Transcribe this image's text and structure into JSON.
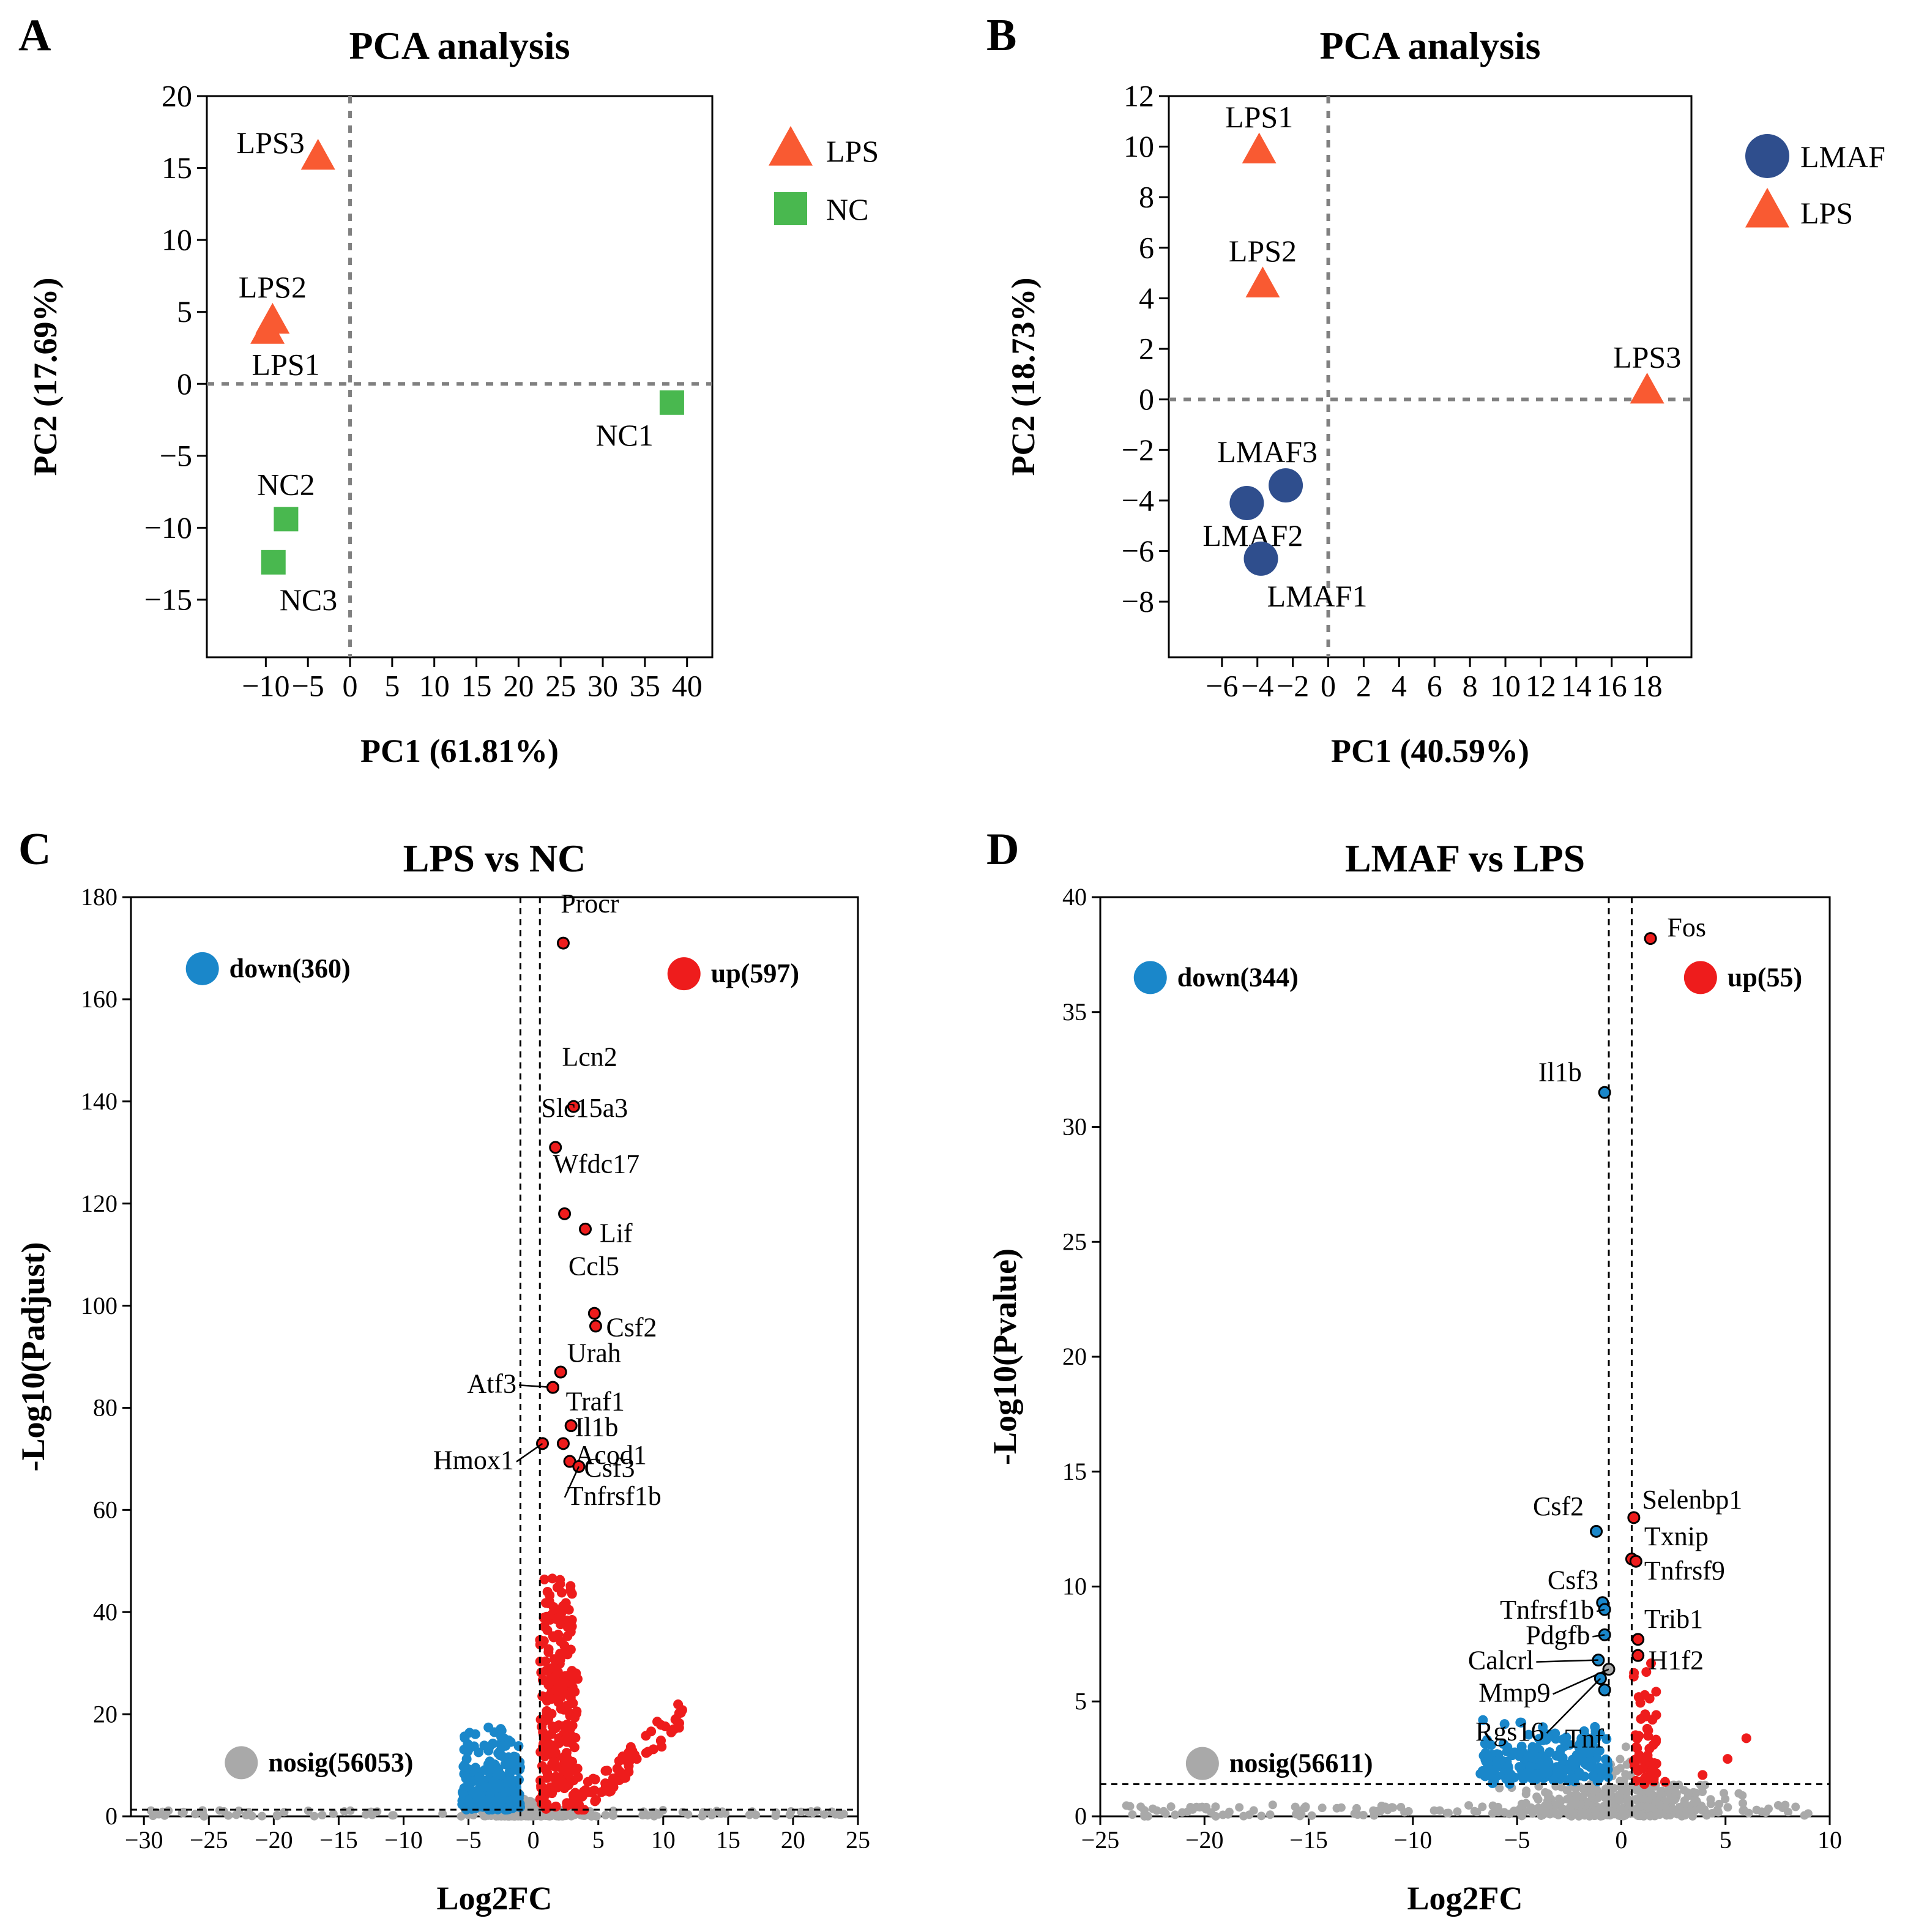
{
  "colors": {
    "lps": "#F95A32",
    "nc": "#49B84F",
    "lmaf": "#2F4E8D",
    "up": "#EE1C1C",
    "down": "#1A87CA",
    "nosig": "#A9A9A9"
  },
  "chart_data": [
    {
      "panel": "A",
      "type": "scatter",
      "title": "PCA analysis",
      "xlabel": "PC1 (61.81%)",
      "ylabel": "PC2 (17.69%)",
      "xlim": [
        -17,
        43
      ],
      "ylim": [
        -19,
        20
      ],
      "xticks": [
        -10,
        -5,
        0,
        5,
        10,
        15,
        20,
        25,
        30,
        35,
        40
      ],
      "yticks": [
        20,
        15,
        10,
        5,
        0,
        -5,
        -10,
        -15
      ],
      "xticklabels": [
        "−10",
        "−5",
        "0",
        "5",
        "10",
        "15",
        "20",
        "25",
        "30",
        "35",
        "40"
      ],
      "yticklabels": [
        "20",
        "15",
        "10",
        "5",
        "0",
        "−5",
        "−10",
        "−15"
      ],
      "legend": [
        {
          "label": "LPS",
          "marker": "triangle",
          "color": "#F95A32"
        },
        {
          "label": "NC",
          "marker": "square",
          "color": "#49B84F"
        }
      ],
      "points": [
        {
          "label": "LPS3",
          "x": -3.8,
          "y": 15.7,
          "group": "LPS",
          "marker": "triangle",
          "color": "#F95A32",
          "lpos": "left"
        },
        {
          "label": "LPS2",
          "x": -9.2,
          "y": 4.3,
          "group": "LPS",
          "marker": "triangle",
          "color": "#F95A32",
          "lpos": "above"
        },
        {
          "label": "LPS1",
          "x": -9.8,
          "y": 3.6,
          "group": "LPS",
          "marker": "triangle",
          "color": "#F95A32",
          "lpos": "below"
        },
        {
          "label": "NC1",
          "x": 38.2,
          "y": -1.3,
          "group": "NC",
          "marker": "square",
          "color": "#49B84F",
          "lpos": "belowleft"
        },
        {
          "label": "NC2",
          "x": -7.6,
          "y": -9.4,
          "group": "NC",
          "marker": "square",
          "color": "#49B84F",
          "lpos": "above"
        },
        {
          "label": "NC3",
          "x": -9.1,
          "y": -12.4,
          "group": "NC",
          "marker": "square",
          "color": "#49B84F",
          "lpos": "belowright"
        }
      ]
    },
    {
      "panel": "B",
      "type": "scatter",
      "title": "PCA analysis",
      "xlabel": "PC1 (40.59%)",
      "ylabel": "PC2 (18.73%)",
      "xlim": [
        -9,
        20.5
      ],
      "ylim": [
        -10.2,
        12
      ],
      "xticks": [
        -6,
        -4,
        -2,
        0,
        2,
        4,
        6,
        8,
        10,
        12,
        14,
        16,
        18
      ],
      "yticks": [
        12,
        10,
        8,
        6,
        4,
        2,
        0,
        -2,
        -4,
        -6,
        -8
      ],
      "xticklabels": [
        "−6",
        "−4",
        "−2",
        "0",
        "2",
        "4",
        "6",
        "8",
        "10",
        "12",
        "14",
        "16",
        "18"
      ],
      "yticklabels": [
        "12",
        "10",
        "8",
        "6",
        "4",
        "2",
        "0",
        "−2",
        "−4",
        "−6",
        "−8"
      ],
      "legend": [
        {
          "label": "LMAF",
          "marker": "circle",
          "color": "#2F4E8D"
        },
        {
          "label": "LPS",
          "marker": "triangle",
          "color": "#F95A32"
        }
      ],
      "points": [
        {
          "label": "LPS1",
          "x": -3.9,
          "y": 9.8,
          "group": "LPS",
          "marker": "triangle",
          "color": "#F95A32",
          "lpos": "above"
        },
        {
          "label": "LPS2",
          "x": -3.7,
          "y": 4.5,
          "group": "LPS",
          "marker": "triangle",
          "color": "#F95A32",
          "lpos": "above"
        },
        {
          "label": "LPS3",
          "x": 18.0,
          "y": 0.3,
          "group": "LPS",
          "marker": "triangle",
          "color": "#F95A32",
          "lpos": "above"
        },
        {
          "label": "LMAF3",
          "x": -2.4,
          "y": -3.4,
          "group": "LMAF",
          "marker": "circle",
          "color": "#2F4E8D",
          "lpos": "aboveleft"
        },
        {
          "label": "LMAF2",
          "x": -4.6,
          "y": -4.1,
          "group": "LMAF",
          "marker": "circle",
          "color": "#2F4E8D",
          "lpos": "belowlow"
        },
        {
          "label": "LMAF1",
          "x": -3.8,
          "y": -6.3,
          "group": "LMAF",
          "marker": "circle",
          "color": "#2F4E8D",
          "lpos": "belowright"
        }
      ]
    },
    {
      "panel": "C",
      "type": "scatter",
      "subtype": "volcano",
      "title": "LPS vs NC",
      "xlabel": "Log2FC",
      "ylabel": "-Log10(Padjust)",
      "xlim": [
        -31,
        25
      ],
      "ylim": [
        0,
        180
      ],
      "xticks": [
        -30,
        -25,
        -20,
        -15,
        -10,
        -5,
        0,
        5,
        10,
        15,
        20,
        25
      ],
      "yticks": [
        0,
        20,
        40,
        60,
        80,
        100,
        120,
        140,
        160,
        180
      ],
      "xticklabels": [
        "−30",
        "−25",
        "−20",
        "−15",
        "−10",
        "−5",
        "0",
        "5",
        "10",
        "15",
        "20",
        "25"
      ],
      "yticklabels": [
        "0",
        "20",
        "40",
        "60",
        "80",
        "100",
        "120",
        "140",
        "160",
        "180"
      ],
      "fc_cutoffs": [
        -1,
        0.5
      ],
      "p_cutoff": 1.3,
      "legend": [
        {
          "label": "down(360)",
          "color": "#1A87CA"
        },
        {
          "label": "up(597)",
          "color": "#EE1C1C"
        },
        {
          "label": "nosig(56053)",
          "color": "#A9A9A9"
        }
      ],
      "labeled_genes": [
        {
          "gene": "Procr",
          "x": 2.3,
          "y": 171,
          "color": "#EE1C1C"
        },
        {
          "gene": "Lcn2",
          "x": 3.1,
          "y": 139,
          "color": "#EE1C1C"
        },
        {
          "gene": "Slc15a3",
          "x": 1.7,
          "y": 131,
          "color": "#EE1C1C"
        },
        {
          "gene": "Wfdc17",
          "x": 2.4,
          "y": 118,
          "color": "#EE1C1C"
        },
        {
          "gene": "Lif",
          "x": 4.0,
          "y": 115,
          "color": "#EE1C1C"
        },
        {
          "gene": "Ccl5",
          "x": 4.7,
          "y": 98.5,
          "color": "#EE1C1C"
        },
        {
          "gene": "Csf2",
          "x": 4.8,
          "y": 96,
          "color": "#EE1C1C"
        },
        {
          "gene": "Urah",
          "x": 2.1,
          "y": 87,
          "color": "#EE1C1C"
        },
        {
          "gene": "Atf3",
          "x": 1.5,
          "y": 84,
          "color": "#EE1C1C"
        },
        {
          "gene": "Traf1",
          "x": 1.5,
          "y": 84,
          "color": "#EE1C1C"
        },
        {
          "gene": "Il1b",
          "x": 2.9,
          "y": 76.5,
          "color": "#EE1C1C"
        },
        {
          "gene": "Acod1",
          "x": 2.3,
          "y": 73,
          "color": "#EE1C1C"
        },
        {
          "gene": "Hmox1",
          "x": 0.7,
          "y": 73,
          "color": "#EE1C1C"
        },
        {
          "gene": "Csf3",
          "x": 2.8,
          "y": 69.5,
          "color": "#EE1C1C"
        },
        {
          "gene": "Tnfrsf1b",
          "x": 3.5,
          "y": 68.5,
          "color": "#EE1C1C"
        }
      ]
    },
    {
      "panel": "D",
      "type": "scatter",
      "subtype": "volcano",
      "title": "LMAF vs LPS",
      "xlabel": "Log2FC",
      "ylabel": "-Log10(Pvalue)",
      "xlim": [
        -25,
        10
      ],
      "ylim": [
        0,
        40
      ],
      "xticks": [
        -25,
        -20,
        -15,
        -10,
        -5,
        0,
        5,
        10
      ],
      "yticks": [
        0,
        5,
        10,
        15,
        20,
        25,
        30,
        35,
        40
      ],
      "xticklabels": [
        "−25",
        "−20",
        "−15",
        "−10",
        "−5",
        "0",
        "5",
        "10"
      ],
      "yticklabels": [
        "0",
        "5",
        "10",
        "15",
        "20",
        "25",
        "30",
        "35",
        "40"
      ],
      "fc_cutoffs": [
        -0.6,
        0.5
      ],
      "p_cutoff": 1.4,
      "legend": [
        {
          "label": "down(344)",
          "color": "#1A87CA"
        },
        {
          "label": "up(55)",
          "color": "#EE1C1C"
        },
        {
          "label": "nosig(56611)",
          "color": "#A9A9A9"
        }
      ],
      "labeled_genes": [
        {
          "gene": "Fos",
          "x": 1.4,
          "y": 38.2,
          "color": "#EE1C1C"
        },
        {
          "gene": "Il1b",
          "x": -0.8,
          "y": 31.5,
          "color": "#1A87CA"
        },
        {
          "gene": "Selenbp1",
          "x": 0.6,
          "y": 13,
          "color": "#EE1C1C"
        },
        {
          "gene": "Csf2",
          "x": -1.2,
          "y": 12.4,
          "color": "#1A87CA"
        },
        {
          "gene": "Txnip",
          "x": 0.5,
          "y": 11.2,
          "color": "#EE1C1C"
        },
        {
          "gene": "Tnfrsf9",
          "x": 0.7,
          "y": 11.1,
          "color": "#EE1C1C"
        },
        {
          "gene": "Csf3",
          "x": -0.9,
          "y": 9.3,
          "color": "#1A87CA"
        },
        {
          "gene": "Tnfrsf1b",
          "x": -0.8,
          "y": 9.0,
          "color": "#1A87CA"
        },
        {
          "gene": "Pdgfb",
          "x": -0.8,
          "y": 7.9,
          "color": "#1A87CA"
        },
        {
          "gene": "Trib1",
          "x": 0.8,
          "y": 7.7,
          "color": "#EE1C1C"
        },
        {
          "gene": "H1f2",
          "x": 0.8,
          "y": 7.0,
          "color": "#EE1C1C"
        },
        {
          "gene": "Calcrl",
          "x": -1.1,
          "y": 6.8,
          "color": "#1A87CA"
        },
        {
          "gene": "Mmp9",
          "x": -0.6,
          "y": 6.4,
          "color": "#A9A9A9"
        },
        {
          "gene": "Rgs16",
          "x": -1.0,
          "y": 6.0,
          "color": "#1A87CA"
        },
        {
          "gene": "Tnf",
          "x": -0.8,
          "y": 5.5,
          "color": "#1A87CA"
        }
      ]
    }
  ]
}
